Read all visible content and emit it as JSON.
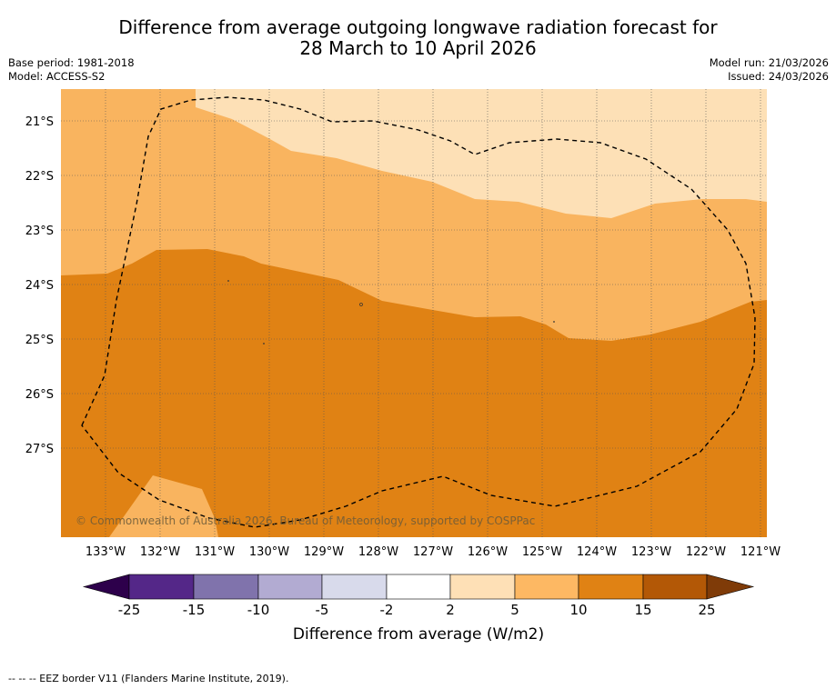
{
  "title": {
    "line1": "Difference from average outgoing longwave radiation forecast for",
    "line2": "28 March to 10 April 2026"
  },
  "meta": {
    "base_period": "Base period: 1981-2018",
    "model": "Model: ACCESS-S2",
    "model_run": "Model run: 21/03/2026",
    "issued": "Issued: 24/03/2026"
  },
  "map": {
    "lat_labels": [
      "21°S",
      "22°S",
      "23°S",
      "24°S",
      "25°S",
      "26°S",
      "27°S"
    ],
    "lon_labels": [
      "133°W",
      "132°W",
      "131°W",
      "130°W",
      "129°W",
      "128°W",
      "127°W",
      "126°W",
      "125°W",
      "124°W",
      "123°W",
      "122°W",
      "121°W"
    ],
    "copyright": "© Commonwealth of Australia 2026, Bureau of Meteorology, supported by COSPPac",
    "zone_colors": {
      "band_2_5": "#fde0b6",
      "band_5_10": "#f9b45f",
      "band_10_15": "#e08214"
    },
    "eez_line_color": "#000000"
  },
  "colorbar": {
    "label": "Difference from average (W/m2)",
    "tick_labels": [
      "-25",
      "-15",
      "-10",
      "-5",
      "-2",
      "2",
      "5",
      "10",
      "15",
      "25"
    ],
    "colors": [
      "#2d004b",
      "#542788",
      "#8073ac",
      "#b2abd2",
      "#d8daeb",
      "#ffffff",
      "#fee0b6",
      "#fdb863",
      "#e08214",
      "#b35806",
      "#7f3b08"
    ]
  },
  "footnote": "-- -- -- EEZ border V11 (Flanders Marine Institute, 2019)."
}
